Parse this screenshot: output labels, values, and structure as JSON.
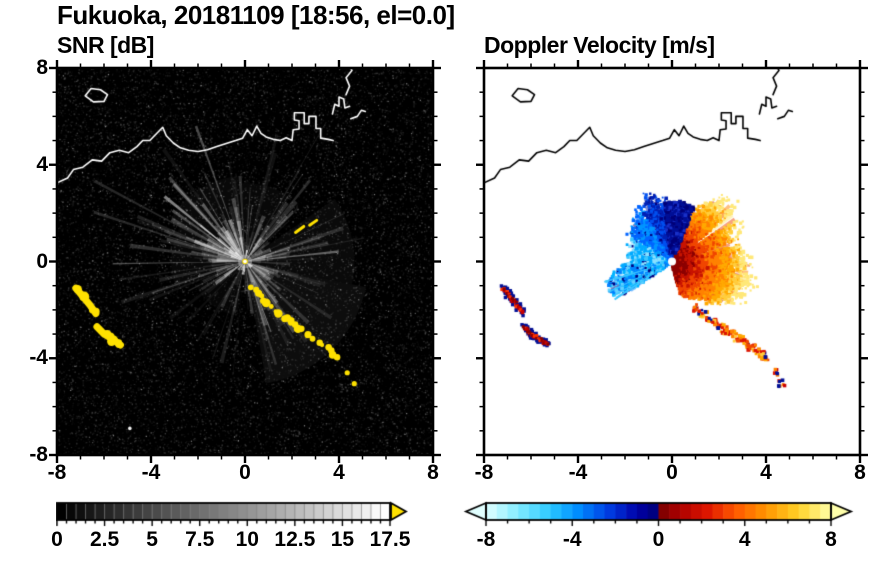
{
  "title": "Fukuoka, 20181109 [18:56, el=0.0]",
  "panels": {
    "snr": {
      "label": "SNR [dB]",
      "colorbar": {
        "min": 0,
        "max": 17.5,
        "tick_labels": [
          "0",
          "2.5",
          "5",
          "7.5",
          "10",
          "12.5",
          "15",
          "17.5"
        ],
        "tick_values": [
          0,
          2.5,
          5,
          7.5,
          10,
          12.5,
          15,
          17.5
        ],
        "type": "grayscale"
      }
    },
    "doppler": {
      "label": "Doppler Velocity [m/s]",
      "colorbar": {
        "min": -8,
        "max": 8,
        "tick_labels": [
          "-8",
          "-4",
          "0",
          "4",
          "8"
        ],
        "tick_values": [
          -8,
          -4,
          0,
          4,
          8
        ],
        "type": "doppler"
      }
    }
  },
  "axes": {
    "range": [
      -8,
      8
    ],
    "x_tick_labels": [
      "-8",
      "-4",
      "0",
      "4",
      "8"
    ],
    "x_tick_values": [
      -8,
      -4,
      0,
      4,
      8
    ],
    "y_tick_labels": [
      "8",
      "4",
      "0",
      "-4",
      "-8"
    ],
    "y_tick_values": [
      8,
      4,
      0,
      -4,
      -8
    ],
    "minor_step": 1
  },
  "colors": {
    "frame": "#000000",
    "snr_bg": "#000000",
    "doppler_bg": "#ffffff",
    "snr_high": "#ffe100",
    "coast_snr": "#ffffff",
    "coast_doppler": "#000000",
    "snr_overflow_arrow": "#ffe100",
    "doppler_underflow_arrow": "#e1ffff",
    "doppler_overflow_arrow": "#ffffaa"
  },
  "doppler_colormap_stops": [
    [
      -8,
      "#e1ffff"
    ],
    [
      -6.5,
      "#82ecff"
    ],
    [
      -5,
      "#2ac8ff"
    ],
    [
      -3.8,
      "#0090ff"
    ],
    [
      -2.4,
      "#0041e6"
    ],
    [
      -1,
      "#0000a8"
    ],
    [
      -0.05,
      "#000078"
    ],
    [
      0.05,
      "#780000"
    ],
    [
      0.9,
      "#aa0000"
    ],
    [
      2.2,
      "#dc1400"
    ],
    [
      3.6,
      "#ff5a00"
    ],
    [
      5,
      "#ff9600"
    ],
    [
      6.5,
      "#ffd228"
    ],
    [
      8,
      "#ffffaa"
    ]
  ],
  "geo": {
    "mainland": [
      [
        -8.0,
        3.25
      ],
      [
        -7.55,
        3.45
      ],
      [
        -7.3,
        3.8
      ],
      [
        -6.9,
        3.9
      ],
      [
        -6.5,
        4.2
      ],
      [
        -6.1,
        4.15
      ],
      [
        -5.75,
        4.5
      ],
      [
        -5.35,
        4.6
      ],
      [
        -4.95,
        4.5
      ],
      [
        -4.6,
        4.75
      ],
      [
        -4.35,
        5.0
      ],
      [
        -4.05,
        5.0
      ],
      [
        -3.75,
        5.3
      ],
      [
        -3.5,
        5.55
      ],
      [
        -3.35,
        5.2
      ],
      [
        -3.05,
        4.9
      ],
      [
        -2.75,
        4.7
      ],
      [
        -2.4,
        4.6
      ],
      [
        -2.0,
        4.55
      ],
      [
        -1.6,
        4.62
      ],
      [
        -1.2,
        4.75
      ],
      [
        -0.8,
        4.88
      ],
      [
        -0.4,
        5.0
      ],
      [
        -0.1,
        5.1
      ],
      [
        0.1,
        5.45
      ],
      [
        0.3,
        5.2
      ],
      [
        0.5,
        5.6
      ],
      [
        0.68,
        5.3
      ],
      [
        0.9,
        5.15
      ],
      [
        1.2,
        5.05
      ],
      [
        1.5,
        5.0
      ],
      [
        1.75,
        5.12
      ],
      [
        2.0,
        5.0
      ],
      [
        2.05,
        5.45
      ],
      [
        2.3,
        5.48
      ],
      [
        2.3,
        5.82
      ],
      [
        2.1,
        5.85
      ],
      [
        2.1,
        6.15
      ],
      [
        2.52,
        6.15
      ],
      [
        2.52,
        5.7
      ],
      [
        2.72,
        5.7
      ],
      [
        2.72,
        6.0
      ],
      [
        3.02,
        6.0
      ],
      [
        3.02,
        5.5
      ],
      [
        3.22,
        5.5
      ],
      [
        3.22,
        5.1
      ],
      [
        3.55,
        5.05
      ],
      [
        3.75,
        5.0
      ]
    ],
    "harbor_pieces": [
      [
        [
          3.72,
          6.1
        ],
        [
          3.82,
          6.5
        ],
        [
          4.0,
          6.42
        ],
        [
          4.0,
          6.8
        ],
        [
          4.2,
          6.72
        ],
        [
          4.25,
          6.35
        ],
        [
          4.45,
          6.42
        ]
      ],
      [
        [
          4.5,
          5.9
        ],
        [
          4.78,
          6.0
        ],
        [
          4.95,
          6.25
        ],
        [
          5.12,
          6.2
        ]
      ],
      [
        [
          4.3,
          6.9
        ],
        [
          4.45,
          7.25
        ],
        [
          4.3,
          7.6
        ],
        [
          4.55,
          7.9
        ],
        [
          4.5,
          8.0
        ]
      ]
    ],
    "island": [
      [
        -6.8,
        6.85
      ],
      [
        -6.55,
        7.15
      ],
      [
        -6.15,
        7.1
      ],
      [
        -5.85,
        6.9
      ],
      [
        -6.0,
        6.62
      ],
      [
        -6.45,
        6.6
      ]
    ]
  },
  "chart_data": [
    {
      "type": "heatmap",
      "title": "SNR [dB]",
      "xlim": [
        -8,
        8
      ],
      "ylim": [
        -8,
        8
      ],
      "units": "dB",
      "colormap": "grayscale",
      "value_range": [
        0,
        17.5
      ],
      "background_color": "#000000",
      "radar_origin": [
        0,
        0
      ],
      "description": "Radar SNR field: dark speckle noise with gray beams radiating from the origin; yellow marks echoes above 17.5 dB; white coastline overlay across the north.",
      "high_value_color": "#ffe100",
      "echo_arc": [
        [
          0.3,
          -1.1
        ],
        [
          0.8,
          -1.6
        ],
        [
          1.3,
          -2.0
        ],
        [
          1.9,
          -2.5
        ],
        [
          2.5,
          -2.9
        ],
        [
          3.1,
          -3.3
        ],
        [
          3.6,
          -3.7
        ],
        [
          4.0,
          -4.05
        ]
      ],
      "echo_dots": [
        [
          4.35,
          -4.6
        ],
        [
          4.65,
          -5.05
        ]
      ],
      "echo_streaks": [
        [
          [
            2.15,
            1.2
          ],
          [
            2.5,
            1.45
          ]
        ],
        [
          [
            2.75,
            1.5
          ],
          [
            3.05,
            1.7
          ]
        ]
      ],
      "west_patches": [
        [
          [
            -7.2,
            -1.1
          ],
          [
            -6.9,
            -1.45
          ],
          [
            -6.6,
            -1.8
          ],
          [
            -6.35,
            -2.15
          ]
        ],
        [
          [
            -6.3,
            -2.7
          ],
          [
            -6.0,
            -3.0
          ],
          [
            -5.65,
            -3.2
          ],
          [
            -5.3,
            -3.45
          ]
        ]
      ]
    },
    {
      "type": "heatmap",
      "title": "Doppler Velocity [m/s]",
      "xlim": [
        -8,
        8
      ],
      "ylim": [
        -8,
        8
      ],
      "units": "m/s",
      "colormap": "blue (toward) to red-yellow (away)",
      "value_range": [
        -8,
        8
      ],
      "background_color": "#ffffff",
      "radar_origin": [
        0,
        0
      ],
      "description": "Doppler velocity fan: blue/cyan sector to the NW (toward radar), dark-red to yellow sector to the E/SE (away), with outlying echo arcs SE and red/navy patches to the WSW.",
      "toward_fan_extent": [
        [
          95,
          2.3
        ],
        [
          105,
          2.6
        ],
        [
          115,
          2.5
        ],
        [
          125,
          2.2
        ],
        [
          135,
          2.0
        ],
        [
          145,
          1.8
        ],
        [
          155,
          1.7
        ],
        [
          165,
          1.5
        ],
        [
          175,
          1.6
        ],
        [
          185,
          1.9
        ],
        [
          195,
          2.3
        ],
        [
          205,
          2.6
        ],
        [
          215,
          2.2
        ]
      ],
      "away_fan_extent": [
        [
          -75,
          1.2
        ],
        [
          -60,
          1.5
        ],
        [
          -50,
          1.9
        ],
        [
          -40,
          2.3
        ],
        [
          -30,
          2.9
        ],
        [
          -20,
          3.0
        ],
        [
          -10,
          3.0
        ],
        [
          0,
          2.9
        ],
        [
          10,
          2.5
        ],
        [
          20,
          2.5
        ],
        [
          30,
          2.9
        ],
        [
          40,
          3.1
        ],
        [
          50,
          3.0
        ],
        [
          60,
          2.5
        ],
        [
          70,
          1.9
        ],
        [
          75,
          1.5
        ]
      ],
      "navy_sector": [
        68,
        98
      ],
      "tail_arc": [
        [
          1.0,
          -1.9
        ],
        [
          1.6,
          -2.4
        ],
        [
          2.3,
          -2.85
        ],
        [
          3.0,
          -3.25
        ],
        [
          3.6,
          -3.7
        ],
        [
          4.05,
          -4.05
        ]
      ],
      "tail_dots": [
        [
          4.35,
          -4.6
        ],
        [
          4.65,
          -5.05
        ]
      ],
      "west_patches": [
        [
          [
            -7.2,
            -1.1
          ],
          [
            -6.9,
            -1.45
          ],
          [
            -6.6,
            -1.8
          ],
          [
            -6.35,
            -2.15
          ]
        ],
        [
          [
            -6.3,
            -2.7
          ],
          [
            -6.0,
            -3.0
          ],
          [
            -5.65,
            -3.2
          ],
          [
            -5.3,
            -3.45
          ]
        ]
      ]
    }
  ]
}
